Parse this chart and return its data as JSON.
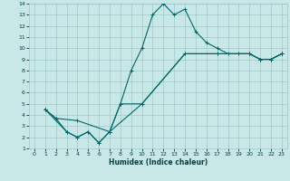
{
  "xlabel": "Humidex (Indice chaleur)",
  "bg_color": "#c8e8e8",
  "grid_color": "#a0c8c8",
  "line_color": "#006868",
  "xlim": [
    -0.5,
    23.5
  ],
  "ylim": [
    1,
    14
  ],
  "xticks": [
    0,
    1,
    2,
    3,
    4,
    5,
    6,
    7,
    8,
    9,
    10,
    11,
    12,
    13,
    14,
    15,
    16,
    17,
    18,
    19,
    20,
    21,
    22,
    23
  ],
  "yticks": [
    1,
    2,
    3,
    4,
    5,
    6,
    7,
    8,
    9,
    10,
    11,
    12,
    13,
    14
  ],
  "line1_x": [
    1,
    2,
    3,
    4,
    5,
    6,
    7,
    8,
    9,
    10,
    11,
    12,
    13,
    14,
    15,
    16,
    17,
    18,
    19,
    20,
    21,
    22,
    23
  ],
  "line1_y": [
    4.5,
    3.7,
    2.5,
    2.0,
    2.5,
    1.5,
    2.5,
    5.0,
    8.0,
    10.0,
    13.0,
    14.0,
    13.0,
    13.5,
    11.5,
    10.5,
    10.0,
    9.5,
    9.5,
    9.5,
    9.0,
    9.0,
    9.5
  ],
  "line2_x": [
    1,
    2,
    4,
    7,
    10,
    14,
    17,
    20,
    21,
    22,
    23
  ],
  "line2_y": [
    4.5,
    3.7,
    3.5,
    2.5,
    5.0,
    9.5,
    9.5,
    9.5,
    9.0,
    9.0,
    9.5
  ],
  "line3_x": [
    1,
    3,
    4,
    5,
    6,
    7,
    8,
    10,
    14,
    17,
    20,
    21,
    22,
    23
  ],
  "line3_y": [
    4.5,
    2.5,
    2.0,
    2.5,
    1.5,
    2.5,
    5.0,
    5.0,
    9.5,
    9.5,
    9.5,
    9.0,
    9.0,
    9.5
  ]
}
